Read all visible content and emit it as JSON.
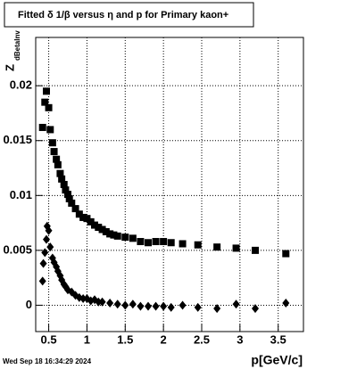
{
  "chart_data": {
    "type": "scatter",
    "title": "Fitted δ 1/β versus η and p for Primary kaon+",
    "x_label": "p[GeV/c]",
    "y_label": "Z",
    "y_label_sub": "dBetaInv",
    "footer": "Wed Sep 18 16:34:29 2024",
    "xlim": [
      0.33,
      3.83
    ],
    "ylim": [
      -0.0024,
      0.0244
    ],
    "xticks": [
      0.5,
      1,
      1.5,
      2,
      2.5,
      3,
      3.5
    ],
    "yticks": [
      0,
      0.005,
      0.01,
      0.015,
      0.02
    ],
    "grid": true,
    "series": [
      {
        "marker": "square",
        "color": "#000000",
        "x": [
          0.42,
          0.45,
          0.47,
          0.5,
          0.52,
          0.55,
          0.57,
          0.6,
          0.62,
          0.65,
          0.67,
          0.7,
          0.72,
          0.75,
          0.77,
          0.8,
          0.85,
          0.9,
          0.95,
          1.0,
          1.05,
          1.1,
          1.15,
          1.2,
          1.25,
          1.3,
          1.35,
          1.4,
          1.5,
          1.6,
          1.7,
          1.8,
          1.9,
          2.0,
          2.1,
          2.25,
          2.45,
          2.7,
          2.95,
          3.2,
          3.6
        ],
        "values": [
          0.0162,
          0.0185,
          0.0195,
          0.018,
          0.016,
          0.0148,
          0.014,
          0.0133,
          0.0128,
          0.012,
          0.0115,
          0.011,
          0.0105,
          0.0101,
          0.0097,
          0.0093,
          0.0088,
          0.0083,
          0.008,
          0.0079,
          0.0076,
          0.0073,
          0.0071,
          0.0069,
          0.0067,
          0.0065,
          0.0064,
          0.0063,
          0.0062,
          0.0061,
          0.0058,
          0.0057,
          0.0058,
          0.0058,
          0.0057,
          0.0056,
          0.0055,
          0.0053,
          0.0052,
          0.005,
          0.0047
        ]
      },
      {
        "marker": "diamond",
        "color": "#000000",
        "x": [
          0.42,
          0.43,
          0.45,
          0.47,
          0.48,
          0.5,
          0.52,
          0.55,
          0.57,
          0.6,
          0.62,
          0.65,
          0.67,
          0.7,
          0.72,
          0.75,
          0.8,
          0.85,
          0.9,
          0.95,
          1.0,
          1.05,
          1.1,
          1.15,
          1.2,
          1.3,
          1.4,
          1.5,
          1.6,
          1.7,
          1.8,
          1.9,
          2.0,
          2.1,
          2.25,
          2.45,
          2.7,
          2.95,
          3.2,
          3.6
        ],
        "values": [
          0.0022,
          0.0038,
          0.0048,
          0.006,
          0.0072,
          0.0068,
          0.0053,
          0.0043,
          0.0039,
          0.0035,
          0.0031,
          0.0027,
          0.0023,
          0.0019,
          0.0017,
          0.0014,
          0.0012,
          0.0009,
          0.0007,
          0.0006,
          0.0006,
          0.0004,
          0.0005,
          0.0003,
          0.0003,
          0.0002,
          0.0001,
          0.0,
          0.0001,
          -0.0001,
          -0.0001,
          -0.0001,
          -0.0001,
          -0.0002,
          0.0,
          -0.0002,
          -0.0003,
          0.0001,
          -0.0003,
          0.0002
        ]
      }
    ]
  }
}
